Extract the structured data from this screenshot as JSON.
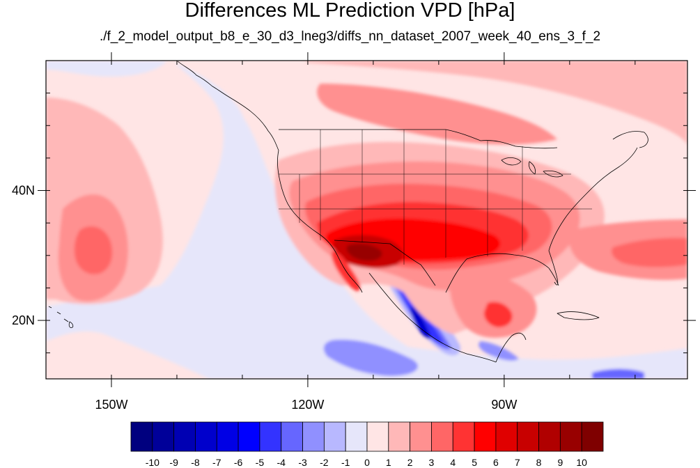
{
  "header": {
    "title": "Differences ML Prediction VPD [hPa]",
    "subtitle": "./f_2_model_output_b8_e_30_d3_lneg3/diffs_nn_dataset_2007_week_40_ens_3_f_2"
  },
  "map": {
    "region": "North America / eastern Pacific",
    "lon_range": [
      -160,
      -62
    ],
    "lat_range": [
      11,
      60
    ],
    "x_ticks": [
      {
        "lon": -150,
        "label": "150W"
      },
      {
        "lon": -120,
        "label": "120W"
      },
      {
        "lon": -90,
        "label": "90W"
      }
    ],
    "y_ticks": [
      {
        "lat": 40,
        "label": "40N"
      },
      {
        "lat": 20,
        "label": "20N"
      }
    ],
    "minor_lon_step": 10,
    "minor_lat_step": 5
  },
  "colorbar": {
    "labels": [
      "-10",
      "-9",
      "-8",
      "-7",
      "-6",
      "-5",
      "-4",
      "-3",
      "-2",
      "-1",
      "0",
      "1",
      "2",
      "3",
      "4",
      "5",
      "6",
      "7",
      "8",
      "9",
      "10"
    ],
    "colors": [
      "#00007f",
      "#000099",
      "#0000b3",
      "#0000cc",
      "#0000e5",
      "#0000ff",
      "#3333ff",
      "#6666ff",
      "#9090ff",
      "#b8b8ff",
      "#e6e6fa",
      "#ffe5e5",
      "#ffb8b8",
      "#ff9090",
      "#ff6666",
      "#ff3333",
      "#ff0000",
      "#e00000",
      "#c80000",
      "#b00000",
      "#980000",
      "#7f0000"
    ]
  }
}
